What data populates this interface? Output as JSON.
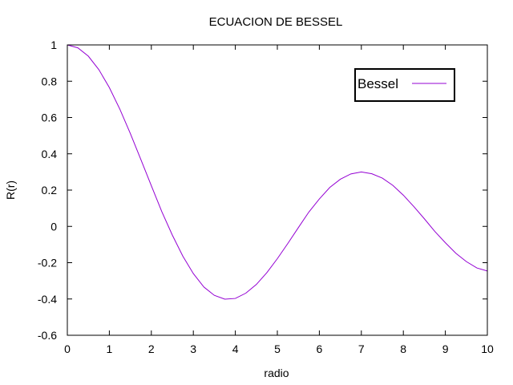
{
  "chart_data": {
    "type": "line",
    "title": "ECUACION DE BESSEL",
    "xlabel": "radio",
    "ylabel": "R(r)",
    "xlim": [
      0,
      10
    ],
    "ylim": [
      -0.6,
      1
    ],
    "xticks": [
      "0",
      "1",
      "2",
      "3",
      "4",
      "5",
      "6",
      "7",
      "8",
      "9",
      "10"
    ],
    "yticks": [
      "-0.6",
      "-0.4",
      "-0.2",
      "0",
      "0.2",
      "0.4",
      "0.6",
      "0.8",
      "1"
    ],
    "grid": false,
    "legend": {
      "position": "top-right"
    },
    "series": [
      {
        "name": "Bessel",
        "color": "#9400d3",
        "x": [
          0,
          0.25,
          0.5,
          0.75,
          1,
          1.25,
          1.5,
          1.75,
          2,
          2.25,
          2.5,
          2.75,
          3,
          3.25,
          3.5,
          3.75,
          4,
          4.25,
          4.5,
          4.75,
          5,
          5.25,
          5.5,
          5.75,
          6,
          6.25,
          6.5,
          6.75,
          7,
          7.25,
          7.5,
          7.75,
          8,
          8.25,
          8.5,
          8.75,
          9,
          9.25,
          9.5,
          9.75,
          10
        ],
        "y": [
          1,
          0.984,
          0.938,
          0.864,
          0.765,
          0.646,
          0.512,
          0.369,
          0.224,
          0.081,
          -0.048,
          -0.164,
          -0.26,
          -0.334,
          -0.38,
          -0.401,
          -0.397,
          -0.368,
          -0.32,
          -0.255,
          -0.178,
          -0.094,
          -0.007,
          0.079,
          0.151,
          0.215,
          0.26,
          0.289,
          0.3,
          0.29,
          0.266,
          0.226,
          0.172,
          0.109,
          0.042,
          -0.028,
          -0.09,
          -0.148,
          -0.194,
          -0.229,
          -0.246
        ]
      }
    ]
  }
}
